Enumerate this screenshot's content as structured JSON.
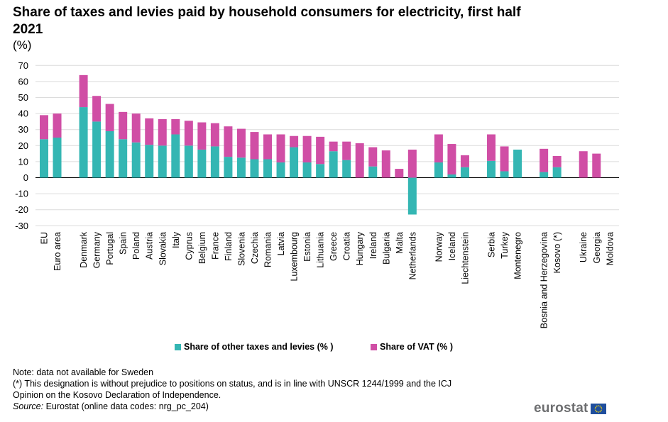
{
  "header": {
    "title": "Share of taxes and levies paid by household consumers for electricity, first half 2021",
    "unit": "(%)"
  },
  "chart_data": {
    "type": "bar",
    "stacked": true,
    "title": "Share of taxes and levies paid by household consumers for electricity, first half 2021",
    "ylabel": "(%)",
    "xlabel": "",
    "ylim": [
      -30,
      70
    ],
    "yticks": [
      70,
      60,
      50,
      40,
      30,
      20,
      10,
      0,
      -10,
      -20,
      -30
    ],
    "grid": true,
    "legend_position": "bottom",
    "categories": [
      "EU",
      "Euro area",
      "Denmark",
      "Germany",
      "Portugal",
      "Spain",
      "Poland",
      "Austria",
      "Slovakia",
      "Italy",
      "Cyprus",
      "Belgium",
      "France",
      "Finland",
      "Slovenia",
      "Czechia",
      "Romania",
      "Latvia",
      "Luxembourg",
      "Estonia",
      "Lithuania",
      "Greece",
      "Croatia",
      "Hungary",
      "Ireland",
      "Bulgaria",
      "Malta",
      "Netherlands",
      "Norway",
      "Iceland",
      "Liechtenstein",
      "Serbia",
      "Turkey",
      "Montenegro",
      "Bosnia and Herzegovina",
      "Kosovo (*)",
      "Ukraine",
      "Georgia",
      "Moldova"
    ],
    "groups": [
      2,
      26,
      3,
      3,
      2,
      3
    ],
    "series": [
      {
        "name": "Share of other taxes and levies (%)",
        "color": "#34b6b3",
        "values": [
          24,
          25,
          44,
          35,
          29,
          24,
          22,
          20.5,
          20,
          27,
          20,
          17.5,
          19.5,
          13,
          12.5,
          11.5,
          11.5,
          9.5,
          19,
          9.5,
          8.5,
          16.5,
          11,
          0,
          7,
          0,
          0,
          -23,
          9.5,
          2,
          6.5,
          10.5,
          4,
          17.5,
          3.5,
          6.5,
          0,
          0,
          0
        ]
      },
      {
        "name": "Share of VAT (%)",
        "color": "#d04ea5",
        "values": [
          15,
          15,
          20,
          16,
          17,
          17,
          18,
          16.5,
          16.5,
          9.5,
          15.5,
          17,
          14.5,
          19,
          18,
          17,
          15.5,
          17.5,
          7,
          16.5,
          17,
          6,
          11.5,
          21.5,
          12,
          17,
          5.5,
          17.5,
          17.5,
          19,
          7.5,
          16.5,
          15.5,
          0,
          14.5,
          7,
          16.5,
          15,
          0
        ]
      }
    ]
  },
  "legend": {
    "other_label": "Share of other taxes and levies (% )",
    "vat_label": "Share of VAT (% )",
    "other_color": "#34b6b3",
    "vat_color": "#d04ea5"
  },
  "notes": {
    "line1": "Note: data not available for Sweden",
    "line2": "(*) This designation is without prejudice to positions on status, and is in line with UNSCR 1244/1999 and the ICJ",
    "line3": "Opinion on the Kosovo Declaration of Independence.",
    "source_label": "Source:",
    "source_text": " Eurostat (online data codes: nrg_pc_204)"
  },
  "logo": {
    "text": "eurostat",
    "flag_icon": "eu-flag-icon"
  }
}
